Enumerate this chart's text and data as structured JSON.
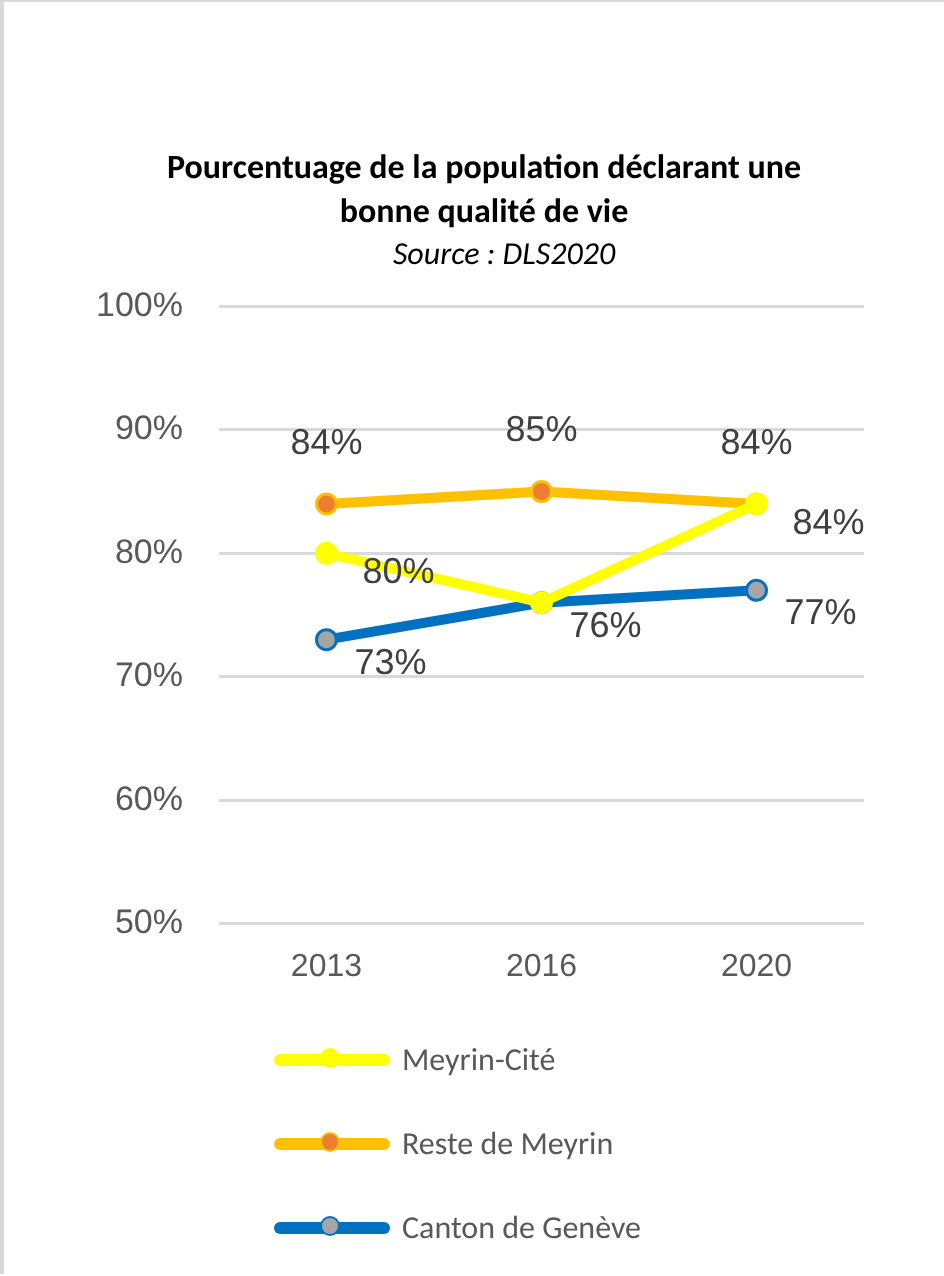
{
  "chart_data": {
    "type": "line",
    "title": "Pourcentuage de la population déclarant une bonne qualité de vie",
    "subtitle": "Source : DLS2020",
    "categories": [
      "2013",
      "2016",
      "2020"
    ],
    "series": [
      {
        "name": "Meyrin-Cité",
        "color": "#ffff00",
        "values": [
          80,
          76,
          84
        ],
        "value_labels": [
          "80%",
          null,
          "84%"
        ]
      },
      {
        "name": "Reste de Meyrin",
        "color": "#ffc000",
        "values": [
          84,
          85,
          84
        ],
        "value_labels": [
          "84%",
          "85%",
          "84%"
        ]
      },
      {
        "name": "Canton de Genève",
        "color": "#0070c0",
        "values": [
          73,
          76,
          77
        ],
        "value_labels": [
          "73%",
          "76%",
          "77%"
        ]
      }
    ],
    "ylim": [
      50,
      100
    ],
    "yticks": [
      {
        "value": 50,
        "label": "50%"
      },
      {
        "value": 60,
        "label": "60%"
      },
      {
        "value": 70,
        "label": "70%"
      },
      {
        "value": 80,
        "label": "80%"
      },
      {
        "value": 90,
        "label": "90%"
      },
      {
        "value": 100,
        "label": "100%"
      }
    ],
    "grid": "y",
    "legend": "bottom",
    "marker": "circle",
    "line_style": "solid"
  }
}
